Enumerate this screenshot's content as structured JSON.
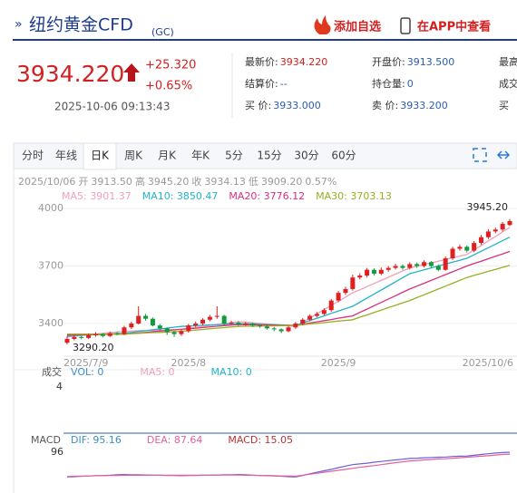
{
  "header": {
    "title": "纽约黄金CFD",
    "code": "(GC)",
    "actions": [
      "添加自选",
      "在APP中查看"
    ]
  },
  "quote": {
    "price": "3934.220",
    "change": "+25.320",
    "change_pct": "+0.65%",
    "time": "2025-10-06 09:13:43"
  },
  "fields": [
    [
      {
        "label": "最新价:",
        "value": "3934.220"
      },
      {
        "label": "开盘价:",
        "value": "3913.500"
      },
      {
        "label": "最高"
      }
    ],
    [
      {
        "label": "结算价:",
        "value": "--"
      },
      {
        "label": "持仓量:",
        "value": "0"
      },
      {
        "label": "成交"
      }
    ],
    [
      {
        "label": "买  价:",
        "value": "3933.000"
      },
      {
        "label": "卖  价:",
        "value": "3933.200"
      },
      {
        "label": "买"
      }
    ]
  ],
  "tabs": [
    "分时",
    "年线",
    "日K",
    "周K",
    "月K",
    "年K",
    "5分",
    "15分",
    "30分",
    "60分"
  ],
  "active_tab": "日K",
  "chart_data": {
    "type": "candlestick",
    "summary": [
      "2025/10/06",
      "开",
      "3913.50",
      "高",
      "3945.20",
      "收",
      "3934.13",
      "低",
      "3909.20",
      "0.57%"
    ],
    "ylim": [
      3250,
      4050
    ],
    "yticks": [
      3400,
      3700,
      4000
    ],
    "annotations": [
      "3945.20",
      "3290.20"
    ],
    "up_color": "#e02020",
    "down_color": "#139a3c",
    "categories": [
      "2025/7/9",
      null,
      null,
      null,
      null,
      null,
      null,
      null,
      null,
      null,
      null,
      null,
      null,
      null,
      null,
      null,
      null,
      "2025/8",
      null,
      null,
      null,
      null,
      null,
      null,
      null,
      null,
      null,
      null,
      null,
      null,
      null,
      null,
      null,
      null,
      null,
      null,
      null,
      null,
      "2025/9",
      null,
      null,
      null,
      null,
      null,
      null,
      null,
      null,
      null,
      null,
      null,
      null,
      null,
      null,
      null,
      null,
      null,
      null,
      null,
      null,
      null,
      null,
      null,
      "2025/10/6"
    ],
    "candles": [
      [
        3300,
        3320,
        3335,
        3290.2
      ],
      [
        3320,
        3330,
        3340,
        3312
      ],
      [
        3330,
        3325,
        3338,
        3318
      ],
      [
        3325,
        3340,
        3348,
        3320
      ],
      [
        3340,
        3345,
        3355,
        3332
      ],
      [
        3345,
        3335,
        3350,
        3328
      ],
      [
        3335,
        3350,
        3358,
        3330
      ],
      [
        3350,
        3345,
        3356,
        3338
      ],
      [
        3345,
        3380,
        3388,
        3340
      ],
      [
        3380,
        3400,
        3410,
        3372
      ],
      [
        3400,
        3440,
        3490,
        3395
      ],
      [
        3440,
        3425,
        3450,
        3415
      ],
      [
        3425,
        3390,
        3432,
        3385
      ],
      [
        3390,
        3375,
        3398,
        3365
      ],
      [
        3375,
        3355,
        3380,
        3340
      ],
      [
        3355,
        3345,
        3362,
        3330
      ],
      [
        3345,
        3360,
        3368,
        3335
      ],
      [
        3360,
        3390,
        3398,
        3352
      ],
      [
        3390,
        3400,
        3410,
        3382
      ],
      [
        3400,
        3420,
        3428,
        3392
      ],
      [
        3420,
        3435,
        3445,
        3412
      ],
      [
        3435,
        3440,
        3490,
        3425
      ],
      [
        3440,
        3400,
        3445,
        3392
      ],
      [
        3400,
        3405,
        3415,
        3395
      ],
      [
        3405,
        3395,
        3412,
        3388
      ],
      [
        3395,
        3400,
        3408,
        3388
      ],
      [
        3400,
        3390,
        3405,
        3382
      ],
      [
        3390,
        3385,
        3396,
        3378
      ],
      [
        3385,
        3375,
        3392,
        3368
      ],
      [
        3375,
        3370,
        3382,
        3360
      ],
      [
        3370,
        3360,
        3375,
        3350
      ],
      [
        3360,
        3380,
        3388,
        3355
      ],
      [
        3380,
        3400,
        3408,
        3372
      ],
      [
        3400,
        3420,
        3428,
        3392
      ],
      [
        3420,
        3440,
        3448,
        3412
      ],
      [
        3440,
        3450,
        3460,
        3432
      ],
      [
        3450,
        3470,
        3480,
        3442
      ],
      [
        3470,
        3520,
        3528,
        3462
      ],
      [
        3520,
        3560,
        3570,
        3512
      ],
      [
        3560,
        3580,
        3592,
        3550
      ],
      [
        3580,
        3640,
        3655,
        3572
      ],
      [
        3640,
        3650,
        3662,
        3630
      ],
      [
        3650,
        3680,
        3690,
        3640
      ],
      [
        3680,
        3660,
        3688,
        3650
      ],
      [
        3660,
        3680,
        3692,
        3652
      ],
      [
        3680,
        3690,
        3700,
        3670
      ],
      [
        3690,
        3700,
        3712,
        3682
      ],
      [
        3700,
        3690,
        3708,
        3680
      ],
      [
        3690,
        3710,
        3720,
        3682
      ],
      [
        3710,
        3700,
        3718,
        3690
      ],
      [
        3700,
        3720,
        3730,
        3692
      ],
      [
        3720,
        3700,
        3725,
        3690
      ],
      [
        3700,
        3680,
        3708,
        3672
      ],
      [
        3680,
        3740,
        3750,
        3675
      ],
      [
        3740,
        3790,
        3800,
        3732
      ],
      [
        3790,
        3800,
        3812,
        3780
      ],
      [
        3800,
        3780,
        3808,
        3770
      ],
      [
        3780,
        3820,
        3830,
        3772
      ],
      [
        3820,
        3850,
        3862,
        3810
      ],
      [
        3850,
        3880,
        3892,
        3840
      ],
      [
        3880,
        3890,
        3900,
        3870
      ],
      [
        3890,
        3920,
        3930,
        3880
      ],
      [
        3913.5,
        3934.13,
        3945.2,
        3909.2
      ]
    ],
    "series": [
      {
        "name": "MA5",
        "label": "MA5: 3901.37",
        "color": "#f0a0b8",
        "values": [
          3330,
          3334,
          3338,
          3341,
          3345,
          3349,
          3353,
          3356,
          3360,
          3361,
          3363,
          3364,
          3365,
          3366,
          3367,
          3369,
          3370,
          3375,
          3380,
          3385,
          3390,
          3395,
          3400,
          3405,
          3410,
          3407,
          3404,
          3401,
          3398,
          3394,
          3391,
          3388,
          3385,
          3407,
          3429,
          3451,
          3473,
          3494,
          3516,
          3538,
          3560,
          3576,
          3593,
          3609,
          3625,
          3641,
          3658,
          3674,
          3690,
          3699,
          3708,
          3716,
          3725,
          3734,
          3743,
          3751,
          3760,
          3784,
          3807,
          3831,
          3854,
          3878,
          3901.37
        ]
      },
      {
        "name": "MA10",
        "label": "MA10: 3850.47",
        "color": "#22b4c8",
        "values": [
          3335,
          3337,
          3339,
          3341,
          3343,
          3344,
          3346,
          3348,
          3350,
          3354,
          3359,
          3363,
          3368,
          3372,
          3376,
          3381,
          3385,
          3387,
          3389,
          3391,
          3393,
          3394,
          3396,
          3398,
          3400,
          3399,
          3398,
          3396,
          3395,
          3394,
          3393,
          3391,
          3390,
          3403,
          3415,
          3428,
          3440,
          3453,
          3465,
          3478,
          3490,
          3511,
          3533,
          3554,
          3575,
          3596,
          3618,
          3639,
          3660,
          3670,
          3680,
          3690,
          3700,
          3710,
          3720,
          3730,
          3740,
          3758,
          3777,
          3795,
          3814,
          3832,
          3850.47
        ]
      },
      {
        "name": "MA20",
        "label": "MA20: 3776.12",
        "color": "#d8307c",
        "values": [
          3340,
          3341,
          3341,
          3342,
          3342,
          3343,
          3344,
          3344,
          3345,
          3348,
          3351,
          3354,
          3358,
          3361,
          3364,
          3367,
          3370,
          3373,
          3376,
          3379,
          3383,
          3386,
          3389,
          3392,
          3395,
          3394,
          3394,
          3393,
          3393,
          3392,
          3391,
          3391,
          3390,
          3396,
          3403,
          3409,
          3415,
          3421,
          3428,
          3434,
          3440,
          3458,
          3475,
          3493,
          3510,
          3528,
          3545,
          3563,
          3580,
          3595,
          3610,
          3625,
          3640,
          3655,
          3670,
          3685,
          3700,
          3713,
          3725,
          3738,
          3751,
          3763,
          3776.12
        ]
      },
      {
        "name": "MA30",
        "label": "MA30: 3703.13",
        "color": "#9aae22",
        "values": [
          3345,
          3345,
          3345,
          3345,
          3345,
          3345,
          3345,
          3345,
          3345,
          3347,
          3349,
          3351,
          3353,
          3354,
          3356,
          3358,
          3360,
          3363,
          3366,
          3369,
          3373,
          3376,
          3379,
          3382,
          3385,
          3386,
          3386,
          3387,
          3388,
          3388,
          3389,
          3389,
          3390,
          3394,
          3398,
          3401,
          3405,
          3409,
          3413,
          3416,
          3420,
          3433,
          3445,
          3458,
          3470,
          3483,
          3495,
          3508,
          3520,
          3535,
          3550,
          3565,
          3580,
          3595,
          3610,
          3625,
          3640,
          3651,
          3661,
          3672,
          3682,
          3693,
          3703.13
        ]
      }
    ],
    "volume": {
      "label": "成交",
      "legend": [
        "VOL: 0",
        "MA5: 0",
        "MA10: 0"
      ],
      "yticks": [
        4
      ]
    },
    "macd": {
      "label": "MACD",
      "legend": [
        "DIF: 95.16",
        "DEA: 87.64",
        "MACD: 15.05"
      ],
      "ylim": [
        -70,
        110
      ],
      "yticks": [
        96
      ],
      "series": [
        {
          "name": "DIF",
          "color": "#6a5fd8",
          "values": [
            -5,
            -4,
            -2,
            -1,
            0,
            1,
            2,
            4,
            5,
            4,
            4,
            3,
            2,
            2,
            1,
            1,
            0,
            1,
            1,
            2,
            2,
            3,
            4,
            4,
            5,
            4,
            2,
            1,
            0,
            -1,
            -2,
            -4,
            -5,
            1,
            8,
            14,
            20,
            26,
            33,
            39,
            45,
            48,
            51,
            55,
            58,
            61,
            64,
            67,
            70,
            71,
            73,
            74,
            75,
            76,
            78,
            79,
            80,
            83,
            86,
            89,
            92,
            94,
            95.16
          ]
        },
        {
          "name": "DEA",
          "color": "#e060a0",
          "values": [
            -3,
            -2,
            -2,
            -1,
            0,
            0,
            1,
            1,
            2,
            2,
            2,
            2,
            2,
            2,
            2,
            2,
            2,
            2,
            2,
            2,
            2,
            3,
            3,
            3,
            3,
            2,
            2,
            1,
            1,
            0,
            -1,
            -1,
            -2,
            2,
            6,
            10,
            14,
            18,
            22,
            26,
            30,
            34,
            38,
            41,
            45,
            49,
            53,
            56,
            60,
            62,
            64,
            66,
            68,
            69,
            71,
            73,
            75,
            77,
            79,
            81,
            84,
            86,
            87.64
          ]
        }
      ]
    }
  }
}
